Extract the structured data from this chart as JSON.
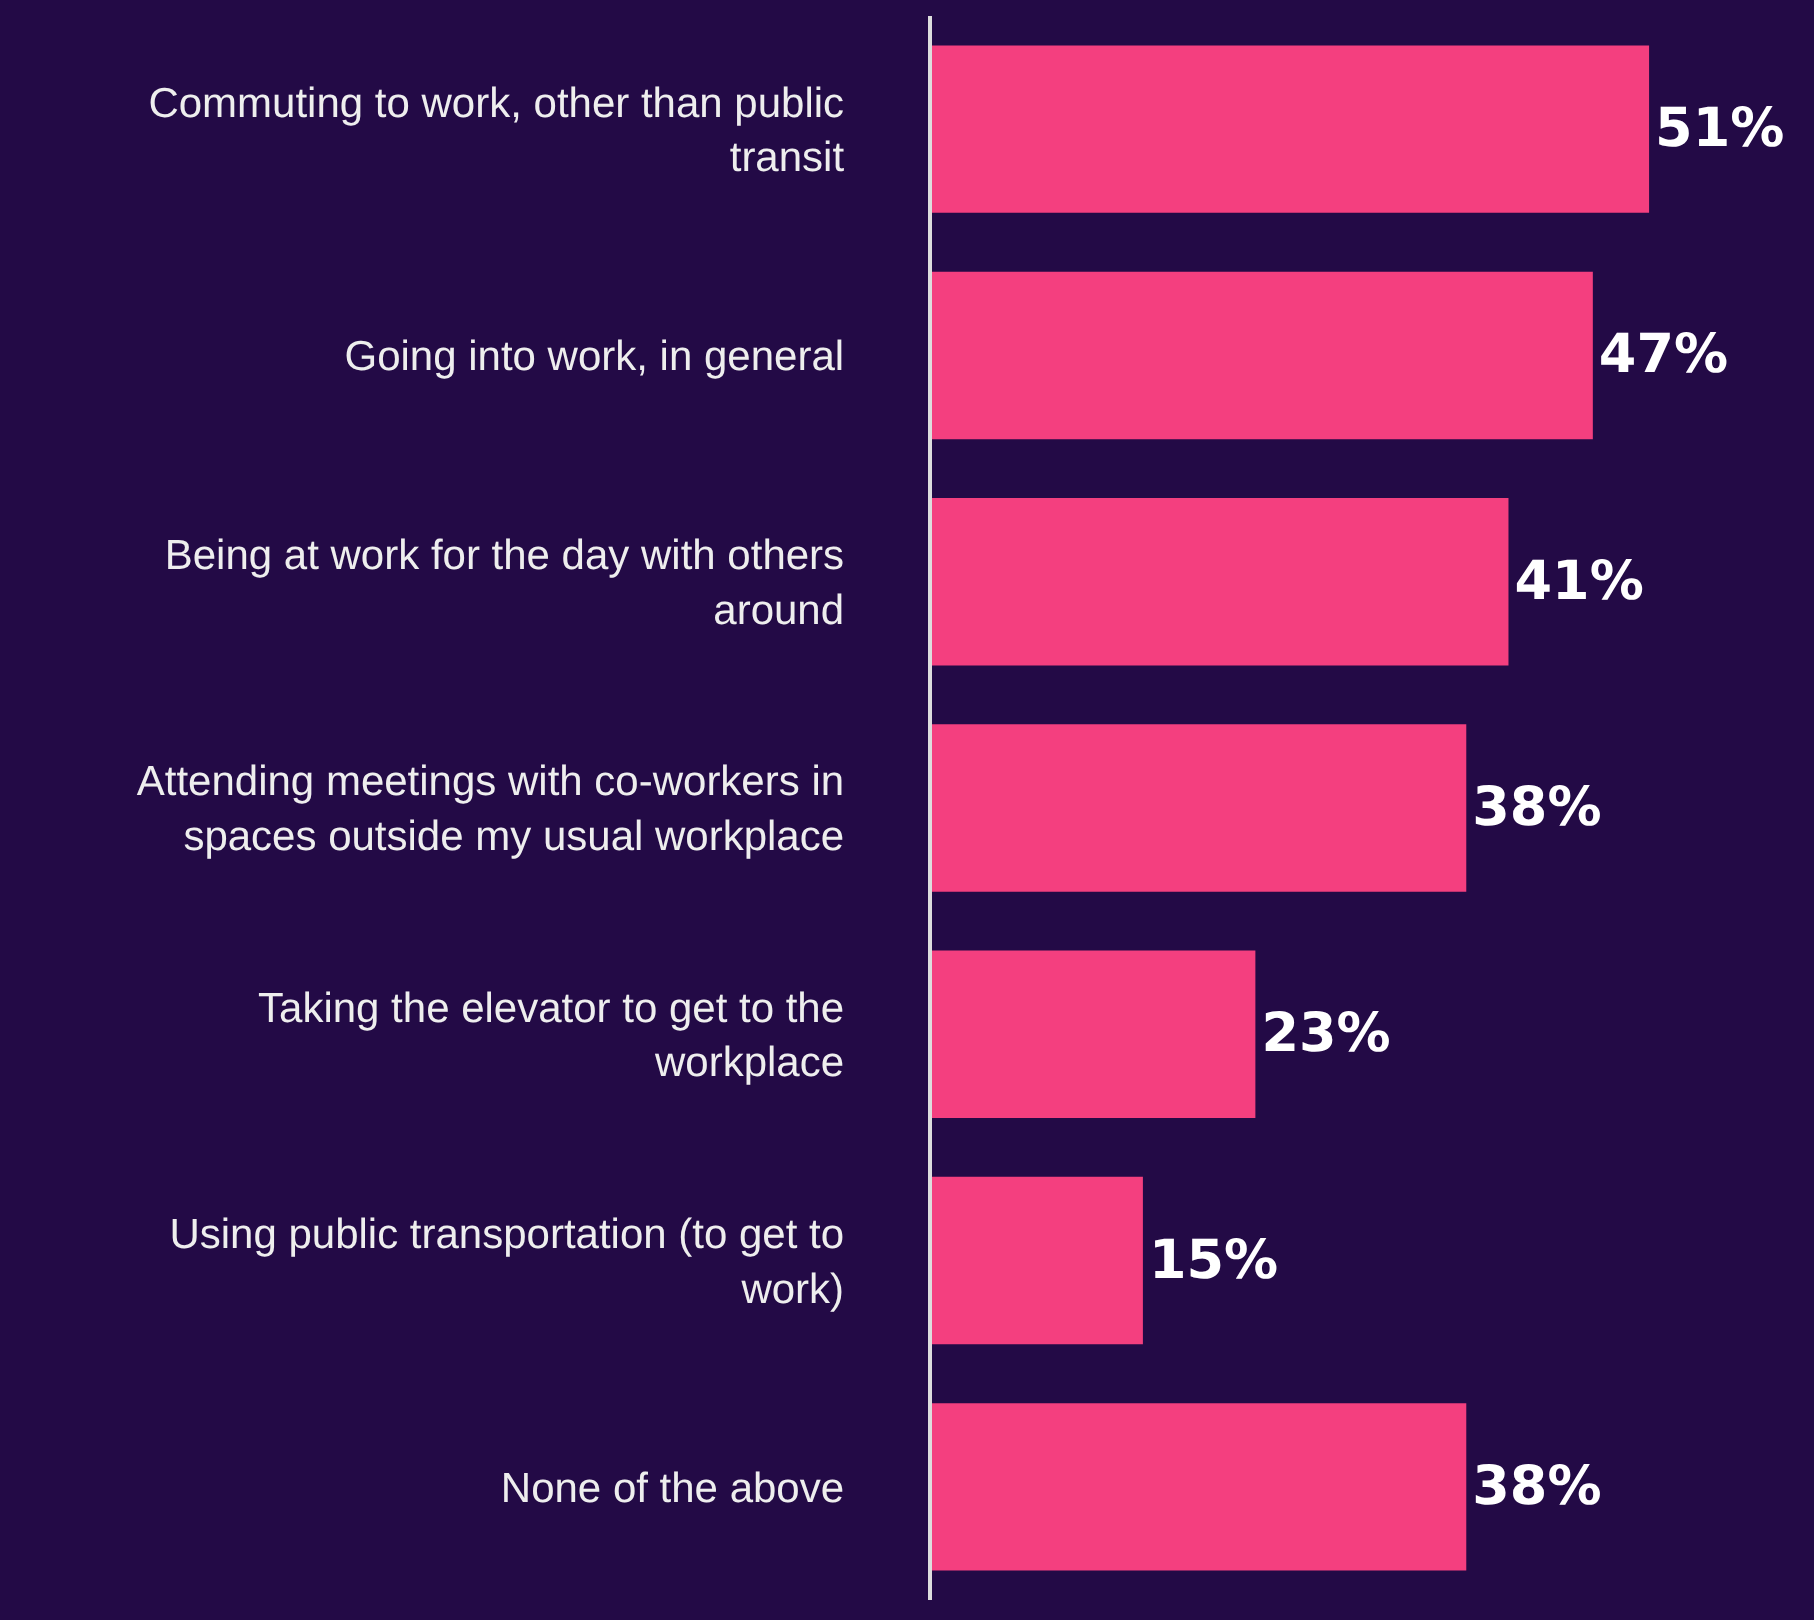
{
  "chart_data": {
    "type": "bar",
    "orientation": "horizontal",
    "categories": [
      "Commuting to work, other than public transit",
      "Going into work, in general",
      "Being at work for the day with others around",
      "Attending meetings with co-workers in spaces outside my usual workplace",
      "Taking the elevator to get to the workplace",
      "Using public transportation (to get to work)",
      "None of the above"
    ],
    "values": [
      51,
      47,
      41,
      38,
      23,
      15,
      38
    ],
    "value_labels": [
      "51%",
      "47%",
      "41%",
      "38%",
      "23%",
      "15%",
      "38%"
    ],
    "color": "#f43f7f",
    "grid": false,
    "legend": false
  }
}
